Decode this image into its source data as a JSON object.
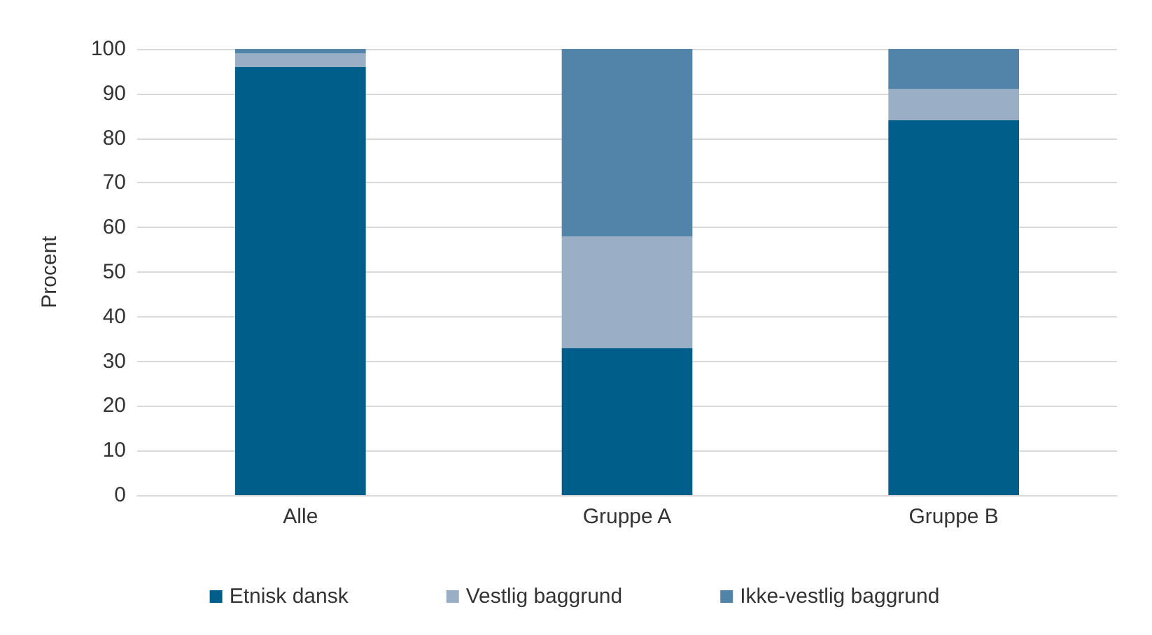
{
  "chart_data": {
    "type": "bar",
    "stacked": true,
    "ylabel": "Procent",
    "categories": [
      "Alle",
      "Gruppe A",
      "Gruppe B"
    ],
    "series": [
      {
        "name": "Etnisk dansk",
        "color": "#005f8a",
        "values": [
          96,
          33,
          84
        ]
      },
      {
        "name": "Vestlig baggrund",
        "color": "#9aafc5",
        "values": [
          3,
          25,
          7
        ]
      },
      {
        "name": "Ikke-vestlig baggrund",
        "color": "#5283a8",
        "values": [
          1,
          42,
          9
        ]
      }
    ],
    "ylim": [
      0,
      100
    ],
    "yticks": [
      0,
      10,
      20,
      30,
      40,
      50,
      60,
      70,
      80,
      90,
      100
    ],
    "grid": "y",
    "legend": "bottom"
  }
}
